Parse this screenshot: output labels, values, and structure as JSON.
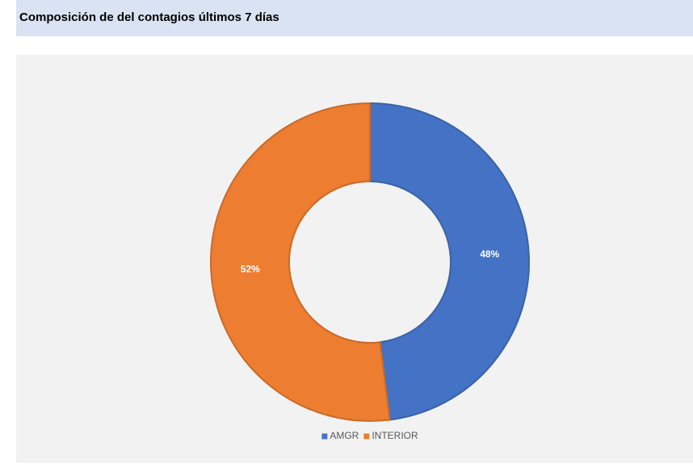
{
  "chart_data": {
    "type": "pie",
    "title": "Composición de del contagios últimos 7 días",
    "categories": [
      "AMGR",
      "INTERIOR"
    ],
    "values": [
      48,
      52
    ],
    "value_labels": [
      "48%",
      "52%"
    ],
    "colors": [
      "#4472c4",
      "#ed7d31"
    ],
    "legend": "bottom"
  }
}
